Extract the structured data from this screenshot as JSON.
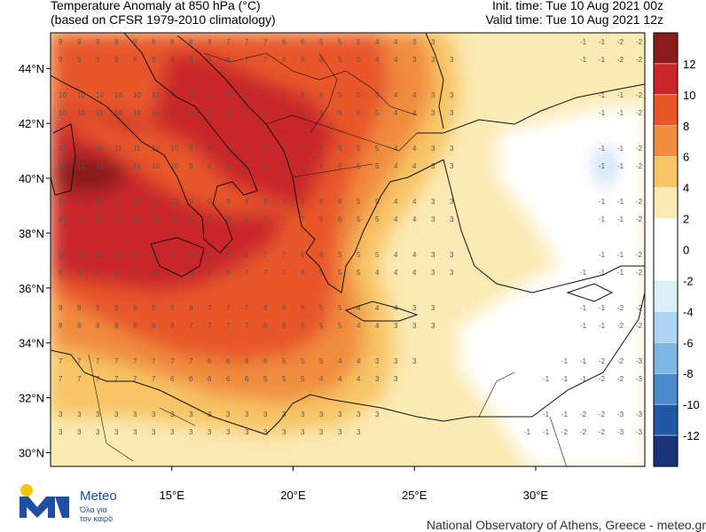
{
  "header": {
    "title_line1": "Temperature Anomaly at 850 hPa (°C)",
    "title_line2": "(based on CFSR 1979-2010 climatology)",
    "init_time": "Init. time: Tue 10 Aug 2021 00z",
    "valid_time": "Valid time: Tue 10 Aug 2021 12z"
  },
  "map": {
    "lat_labels": [
      "44°N",
      "42°N",
      "40°N",
      "38°N",
      "36°N",
      "34°N",
      "32°N",
      "30°N"
    ],
    "lat_values": [
      44,
      42,
      40,
      38,
      36,
      34,
      32,
      30
    ],
    "lon_labels": [
      "15°E",
      "20°E",
      "25°E",
      "30°E"
    ],
    "lon_values": [
      15,
      20,
      25,
      30
    ],
    "lon_range": [
      10,
      34.5
    ],
    "lat_range": [
      29.5,
      45.3
    ],
    "colors": {
      "ge12": "#8b1a1a",
      "10_12": "#c9252b",
      "8_10": "#e8572a",
      "6_8": "#f08c3c",
      "4_6": "#f8c465",
      "2_4": "#faeab3",
      "neutral": "#ffffff",
      "cold1": "#dceef9",
      "cold2": "#aed4f0"
    }
  },
  "colorbar": {
    "labels": [
      "12",
      "10",
      "8",
      "6",
      "4",
      "2",
      "0",
      "-2",
      "-4",
      "-6",
      "-8",
      "-10",
      "-12"
    ],
    "colors": [
      "#8b1a1a",
      "#c9252b",
      "#e8572a",
      "#f08c3c",
      "#f8c465",
      "#faeab3",
      "#ffffff",
      "#ffffff",
      "#dceef9",
      "#aed4f0",
      "#7fb6e2",
      "#4a8bcc",
      "#2058a8",
      "#18337a"
    ]
  },
  "logo": {
    "name": "Meteo",
    "tagline_line1": "Όλα για",
    "tagline_line2": "τον καιρό"
  },
  "footer": {
    "credit": "National Observatory of Athens, Greece - meteo.gr"
  }
}
